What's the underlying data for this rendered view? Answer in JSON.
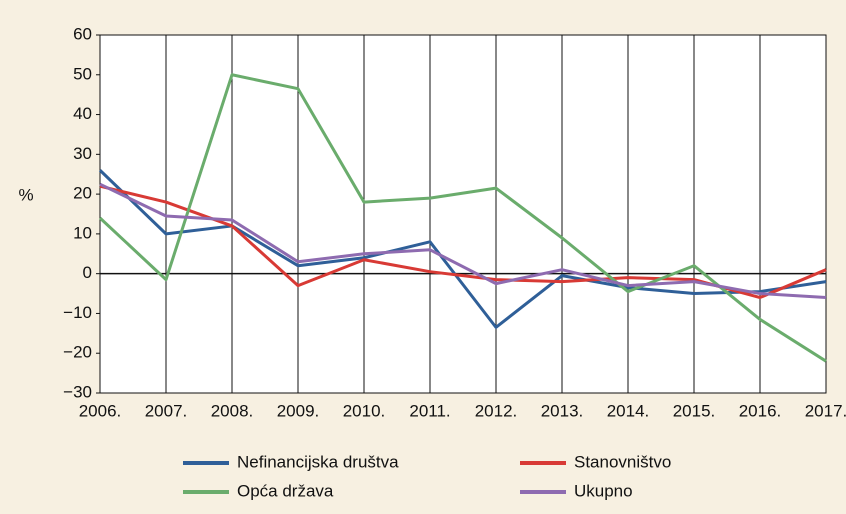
{
  "chart_data": {
    "type": "line",
    "y_label": "%",
    "categories": [
      "2006.",
      "2007.",
      "2008.",
      "2009.",
      "2010.",
      "2011.",
      "2012.",
      "2013.",
      "2014.",
      "2015.",
      "2016.",
      "2017."
    ],
    "series": [
      {
        "name": "Nefinancijska društva",
        "color": "#2f5f98",
        "values": [
          26,
          10,
          12,
          2,
          4,
          8,
          -13.5,
          -0.5,
          -3.5,
          -5,
          -4.5,
          -2
        ]
      },
      {
        "name": "Stanovništvo",
        "color": "#d83a35",
        "values": [
          22,
          18,
          12,
          -3,
          3.5,
          0.5,
          -1.5,
          -2,
          -1,
          -1.5,
          -6,
          1
        ]
      },
      {
        "name": "Opća država",
        "color": "#6aac6c",
        "values": [
          14,
          -1.5,
          50,
          46.5,
          18,
          19,
          21.5,
          9,
          -4.5,
          2,
          -11.5,
          -22
        ]
      },
      {
        "name": "Ukupno",
        "color": "#8e6bb0",
        "values": [
          22.5,
          14.5,
          13.5,
          3,
          5,
          6,
          -2.5,
          1,
          -3,
          -2,
          -5,
          -6
        ]
      }
    ],
    "ylim": [
      -30,
      60
    ],
    "yticks": [
      {
        "value": -30,
        "label": "−30"
      },
      {
        "value": -20,
        "label": "−20"
      },
      {
        "value": -10,
        "label": "−10"
      },
      0,
      10,
      20,
      30,
      40,
      50,
      60
    ],
    "grid": "x",
    "legend": "bottom"
  }
}
